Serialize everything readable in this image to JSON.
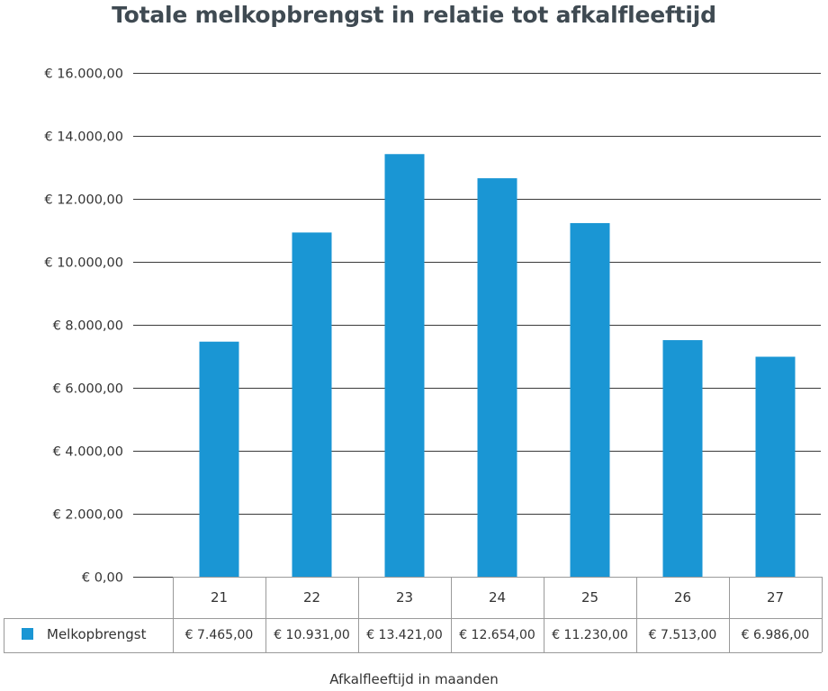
{
  "chart_data": {
    "type": "bar",
    "title": "Totale melkopbrengst in relatie tot afkalfleeftijd",
    "xlabel": "Afkalfleeftijd in maanden",
    "ylabel": "",
    "categories": [
      "21",
      "22",
      "23",
      "24",
      "25",
      "26",
      "27"
    ],
    "series": [
      {
        "name": "Melkopbrengst",
        "values": [
          7465,
          10931,
          13421,
          12654,
          11230,
          7513,
          6986
        ],
        "value_labels": [
          "€ 7.465,00",
          "€ 10.931,00",
          "€ 13.421,00",
          "€ 12.654,00",
          "€ 11.230,00",
          "€ 7.513,00",
          "€ 6.986,00"
        ]
      }
    ],
    "ylim": [
      0,
      16000
    ],
    "yticks": [
      0,
      2000,
      4000,
      6000,
      8000,
      10000,
      12000,
      14000,
      16000
    ],
    "ytick_labels": [
      "€ 0,00",
      "€ 2.000,00",
      "€ 4.000,00",
      "€ 6.000,00",
      "€ 8.000,00",
      "€ 10.000,00",
      "€ 12.000,00",
      "€ 14.000,00",
      "€ 16.000,00"
    ],
    "grid": true,
    "legend": "data-table-row",
    "colors": {
      "bar": "#1a96d4",
      "grid": "#3a3a3a",
      "table_border": "#9a9a9a",
      "title": "#3f4a52"
    }
  }
}
